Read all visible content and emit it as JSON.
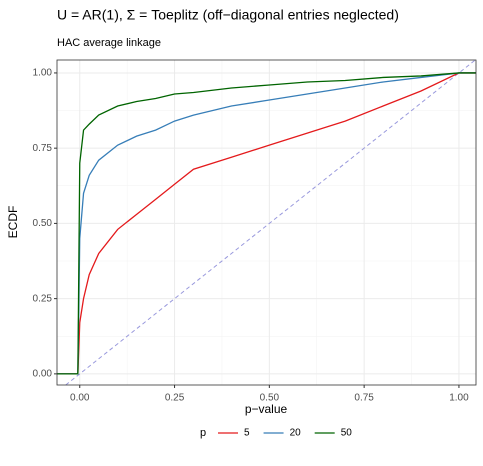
{
  "chart_data": {
    "type": "line",
    "title": "U = AR(1), Σ = Toeplitz (off−diagonal entries neglected)",
    "subtitle": "HAC average linkage",
    "x_label": "p−value",
    "y_label": "ECDF",
    "legend_title": "p",
    "x": [
      -0.06,
      -0.005,
      0.0,
      0.01,
      0.025,
      0.05,
      0.1,
      0.15,
      0.2,
      0.25,
      0.3,
      0.4,
      0.5,
      0.6,
      0.7,
      0.8,
      0.9,
      1.0,
      1.045
    ],
    "series": [
      {
        "name": "5",
        "color": "#e41a1c",
        "values": [
          0,
          0,
          0.17,
          0.25,
          0.33,
          0.4,
          0.48,
          0.53,
          0.58,
          0.63,
          0.68,
          0.72,
          0.76,
          0.8,
          0.84,
          0.89,
          0.94,
          1.0,
          1.0
        ]
      },
      {
        "name": "20",
        "color": "#377eb8",
        "values": [
          0,
          0,
          0.45,
          0.6,
          0.66,
          0.71,
          0.76,
          0.79,
          0.81,
          0.84,
          0.86,
          0.89,
          0.91,
          0.93,
          0.95,
          0.97,
          0.985,
          1.0,
          1.0
        ]
      },
      {
        "name": "50",
        "color": "#006400",
        "values": [
          0,
          0,
          0.7,
          0.81,
          0.83,
          0.86,
          0.89,
          0.905,
          0.915,
          0.93,
          0.935,
          0.95,
          0.96,
          0.97,
          0.975,
          0.985,
          0.99,
          1.0,
          1.0
        ]
      }
    ],
    "xlim": [
      -0.06,
      1.045
    ],
    "ylim": [
      -0.037,
      1.043
    ],
    "xticks": [
      {
        "value": 0,
        "label": "0.00"
      },
      {
        "value": 0.25,
        "label": "0.25"
      },
      {
        "value": 0.5,
        "label": "0.50"
      },
      {
        "value": 0.75,
        "label": "0.75"
      },
      {
        "value": 1,
        "label": "1.00"
      }
    ],
    "yticks": [
      {
        "value": 0,
        "label": "0.00"
      },
      {
        "value": 0.25,
        "label": "0.25"
      },
      {
        "value": 0.5,
        "label": "0.50"
      },
      {
        "value": 0.75,
        "label": "0.75"
      },
      {
        "value": 1,
        "label": "1.00"
      }
    ],
    "grid": true,
    "legend_position": "bottom"
  }
}
